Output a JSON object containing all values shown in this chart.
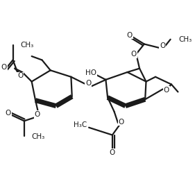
{
  "bg_color": "#ffffff",
  "line_color": "#1a1a1a",
  "lw": 1.6,
  "bold_lw": 5.0,
  "font_size": 7.5,
  "figsize": [
    2.81,
    2.81
  ],
  "dpi": 100,
  "xlim": [
    0,
    10
  ],
  "ylim": [
    0,
    10
  ]
}
